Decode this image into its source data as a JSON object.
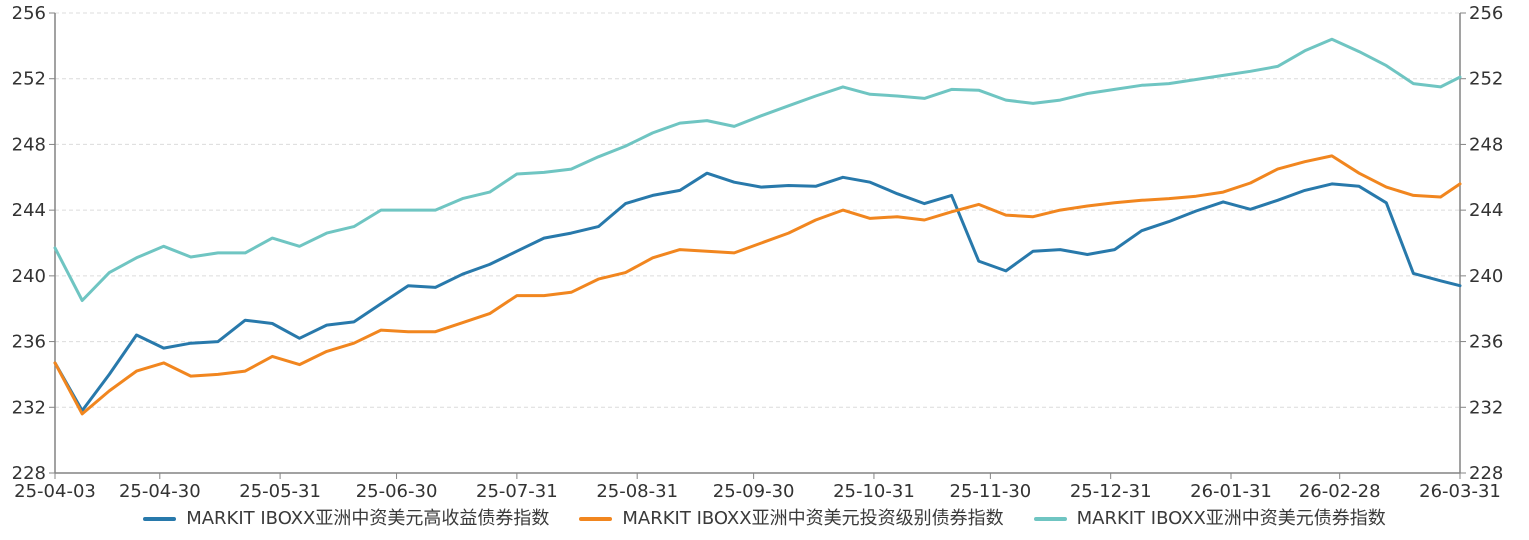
{
  "chart_data": {
    "type": "line",
    "title": "",
    "xlabel": "",
    "ylabel": "",
    "y_min": 228,
    "y_max": 256,
    "y_ticks": [
      228,
      232,
      236,
      240,
      244,
      248,
      252,
      256
    ],
    "grid": "horizontal-dashed",
    "legend_position": "bottom",
    "dual_y_axis": true,
    "x_tick_labels": [
      "25-04-03",
      "25-04-30",
      "25-05-31",
      "25-06-30",
      "25-07-31",
      "25-08-31",
      "25-09-30",
      "25-10-31",
      "25-11-30",
      "25-12-31",
      "26-01-31",
      "26-02-28",
      "26-03-31"
    ],
    "dates": [
      "25-04-03",
      "25-04-10",
      "25-04-17",
      "25-04-24",
      "25-05-01",
      "25-05-08",
      "25-05-15",
      "25-05-22",
      "25-05-29",
      "25-06-05",
      "25-06-12",
      "25-06-19",
      "25-06-26",
      "25-07-03",
      "25-07-10",
      "25-07-17",
      "25-07-24",
      "25-07-31",
      "25-08-07",
      "25-08-14",
      "25-08-21",
      "25-08-28",
      "25-09-04",
      "25-09-11",
      "25-09-18",
      "25-09-25",
      "25-10-02",
      "25-10-09",
      "25-10-16",
      "25-10-23",
      "25-10-30",
      "25-11-06",
      "25-11-13",
      "25-11-20",
      "25-11-27",
      "25-12-04",
      "25-12-11",
      "25-12-18",
      "25-12-25",
      "26-01-01",
      "26-01-08",
      "26-01-15",
      "26-01-22",
      "26-01-29",
      "26-02-05",
      "26-02-12",
      "26-02-19",
      "26-02-26",
      "26-03-05",
      "26-03-12",
      "26-03-19",
      "26-03-26",
      "26-03-31"
    ],
    "series": [
      {
        "name": "MARKIT IBOXX亚洲中资美元高收益债券指数",
        "color": "#2879ab",
        "values": [
          234.7,
          231.8,
          234.0,
          236.4,
          235.6,
          235.9,
          236.0,
          237.3,
          237.1,
          236.2,
          237.0,
          237.2,
          238.3,
          239.4,
          239.3,
          240.1,
          240.7,
          241.5,
          242.3,
          242.6,
          243.0,
          244.4,
          244.9,
          245.2,
          246.25,
          245.7,
          245.4,
          245.5,
          245.45,
          246.0,
          245.7,
          245.0,
          244.4,
          244.9,
          240.9,
          240.3,
          241.5,
          241.6,
          241.3,
          241.6,
          242.75,
          243.3,
          243.95,
          244.5,
          244.05,
          244.6,
          245.2,
          245.6,
          245.45,
          244.45,
          240.15,
          239.7,
          239.4
        ]
      },
      {
        "name": "MARKIT IBOXX亚洲中资美元投资级别债券指数",
        "color": "#f1861f",
        "values": [
          234.7,
          231.6,
          233.0,
          234.2,
          234.7,
          233.9,
          234.0,
          234.2,
          235.1,
          234.6,
          235.4,
          235.9,
          236.7,
          236.6,
          236.6,
          237.15,
          237.7,
          238.8,
          238.8,
          239.0,
          239.8,
          240.2,
          241.1,
          241.6,
          241.5,
          241.4,
          242.0,
          242.6,
          243.4,
          244.0,
          243.5,
          243.6,
          243.4,
          243.9,
          244.35,
          243.7,
          243.6,
          244.0,
          244.25,
          244.45,
          244.6,
          244.7,
          244.85,
          245.1,
          245.65,
          246.5,
          246.95,
          247.3,
          246.25,
          245.4,
          244.9,
          244.8,
          245.6
        ]
      },
      {
        "name": "MARKIT IBOXX亚洲中资美元债券指数",
        "color": "#6fc5c2",
        "values": [
          241.7,
          238.5,
          240.2,
          241.1,
          241.8,
          241.15,
          241.4,
          241.4,
          242.3,
          241.8,
          242.6,
          243.0,
          244.0,
          244.0,
          244.0,
          244.7,
          245.1,
          246.2,
          246.3,
          246.5,
          247.25,
          247.9,
          248.7,
          249.3,
          249.45,
          249.1,
          249.75,
          250.35,
          250.95,
          251.5,
          251.05,
          250.95,
          250.8,
          251.35,
          251.3,
          250.7,
          250.5,
          250.7,
          251.1,
          251.35,
          251.6,
          251.7,
          251.95,
          252.2,
          252.45,
          252.75,
          253.7,
          254.4,
          253.65,
          252.8,
          251.7,
          251.5,
          252.1
        ]
      }
    ]
  },
  "style": {
    "grid_color": "#dcdcdc",
    "axis_color": "#848484",
    "tick_label_color": "#333333",
    "background": "#ffffff"
  }
}
